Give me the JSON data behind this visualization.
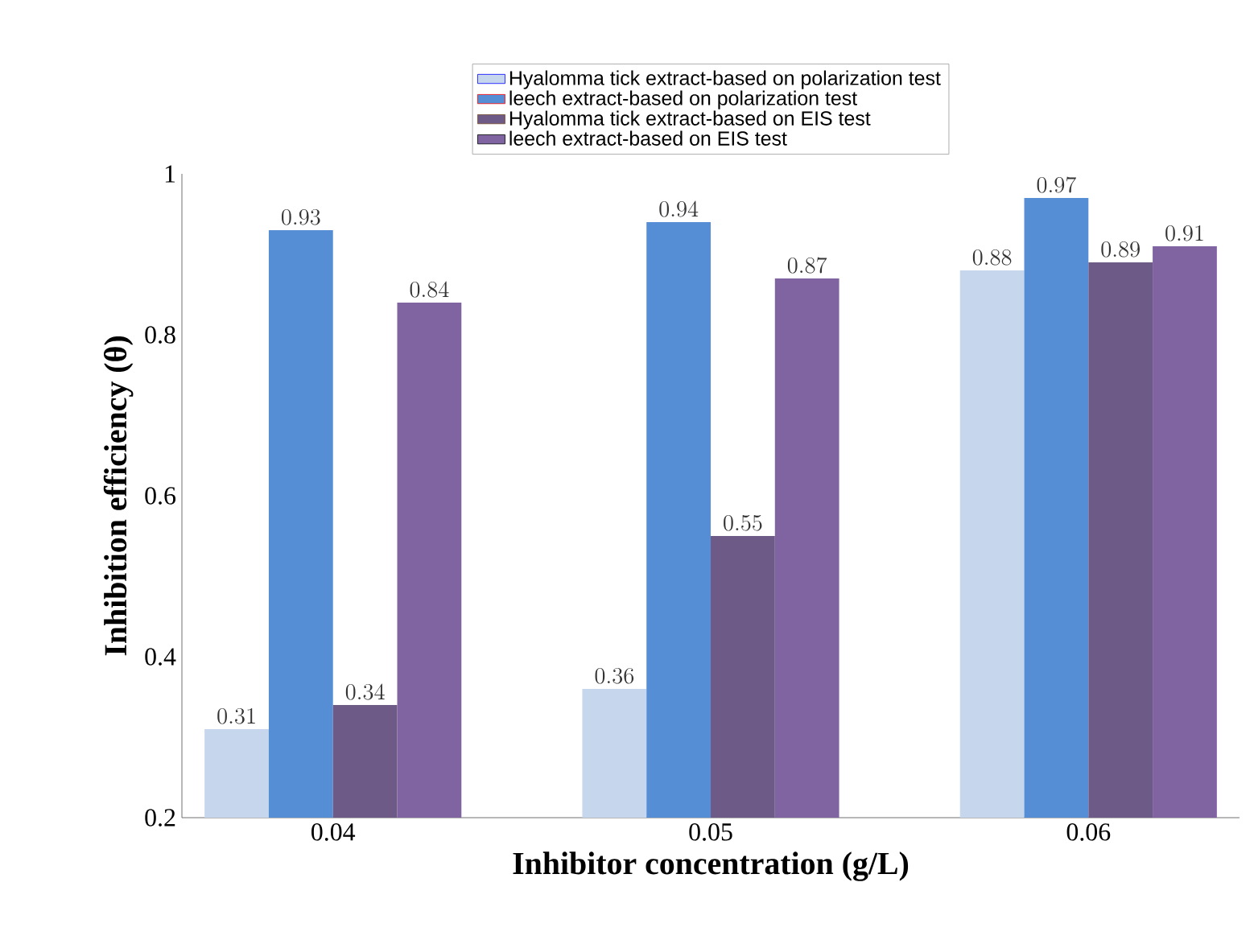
{
  "chart_data": {
    "type": "bar",
    "xlabel": "Inhibitor concentration (g/L)",
    "ylabel": "Inhibition efficiency (θ)",
    "categories": [
      "0.04",
      "0.05",
      "0.06"
    ],
    "series": [
      {
        "name": "Hyalomma tick extract-based on polarization test",
        "color": "#c6d6ec",
        "values": [
          0.31,
          0.36,
          0.88
        ]
      },
      {
        "name": "leech extract-based on polarization test",
        "color": "#558ed5",
        "values": [
          0.93,
          0.94,
          0.97
        ]
      },
      {
        "name": "Hyalomma tick extract-based on EIS test",
        "color": "#6e5a86",
        "values": [
          0.34,
          0.55,
          0.89
        ]
      },
      {
        "name": "leech extract-based on EIS test",
        "color": "#8064a2",
        "values": [
          0.84,
          0.87,
          0.91
        ]
      }
    ],
    "ylim": [
      0.2,
      1
    ],
    "yticks": [
      0.2,
      0.4,
      0.6,
      0.8,
      1
    ],
    "grid": false,
    "legend": "top",
    "data_labels": true
  }
}
